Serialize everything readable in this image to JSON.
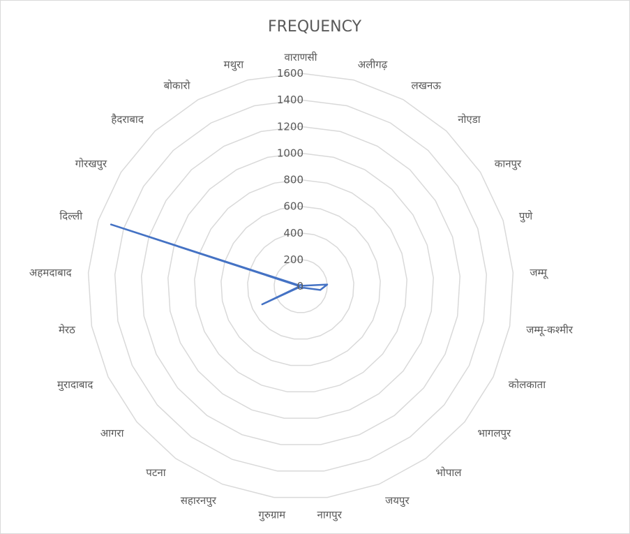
{
  "chart_data": {
    "type": "radar",
    "title": "FREQUENCY",
    "categories": [
      "वाराणसी",
      "अलीगढ़",
      "लखनऊ",
      "नोएडा",
      "कानपुर",
      "पुणे",
      "जम्मू",
      "जम्मू-कश्मीर",
      "कोलकाता",
      "भागलपुर",
      "भोपाल",
      "जयपुर",
      "नागपुर",
      "गुरुग्राम",
      "सहारनपुर",
      "पटना",
      "आगरा",
      "मुरादाबाद",
      "मेरठ",
      "अहमदाबाद",
      "दिल्ली",
      "गोरखपुर",
      "हैदराबाद",
      "बोकारो",
      "मथुरा"
    ],
    "values": [
      10,
      10,
      10,
      12,
      10,
      10,
      200,
      150,
      30,
      20,
      20,
      10,
      10,
      10,
      10,
      10,
      10,
      320,
      10,
      10,
      1500,
      10,
      10,
      10,
      10
    ],
    "ticks": [
      "0",
      "200",
      "400",
      "600",
      "800",
      "1000",
      "1200",
      "1400",
      "1600"
    ],
    "rlim": [
      0,
      1600
    ],
    "grid": true,
    "legend": "none",
    "series_color": "#4472c4",
    "grid_color": "#d9d9d9",
    "text_color": "#595959"
  }
}
